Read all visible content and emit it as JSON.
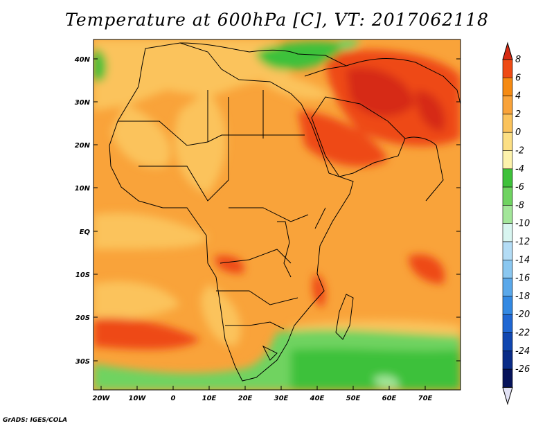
{
  "title": "Temperature at 600hPa [C], VT: 2017062118",
  "credit": "GrADS: IGES/COLA",
  "lat_labels": [
    "40N",
    "30N",
    "20N",
    "10N",
    "EQ",
    "10S",
    "20S",
    "30S"
  ],
  "lon_labels": [
    "20W",
    "10W",
    "0",
    "10E",
    "20E",
    "30E",
    "40E",
    "50E",
    "60E",
    "70E"
  ],
  "colorbar": {
    "levels": [
      "8",
      "6",
      "4",
      "2",
      "0",
      "-2",
      "-4",
      "-6",
      "-8",
      "-10",
      "-12",
      "-14",
      "-16",
      "-18",
      "-20",
      "-22",
      "-24",
      "-26"
    ],
    "colors": [
      "#d62a12",
      "#ee4a14",
      "#f58a12",
      "#f9a33a",
      "#fbc35c",
      "#fcdf84",
      "#fdf2ac",
      "#3ec13a",
      "#6fd361",
      "#a3e69a",
      "#d8f5f0",
      "#b3dcf5",
      "#8ac7f0",
      "#5aa8ea",
      "#3389e3",
      "#1f67d3",
      "#1046b0",
      "#0a2c87",
      "#06135a",
      "#e2e2f5"
    ]
  }
}
